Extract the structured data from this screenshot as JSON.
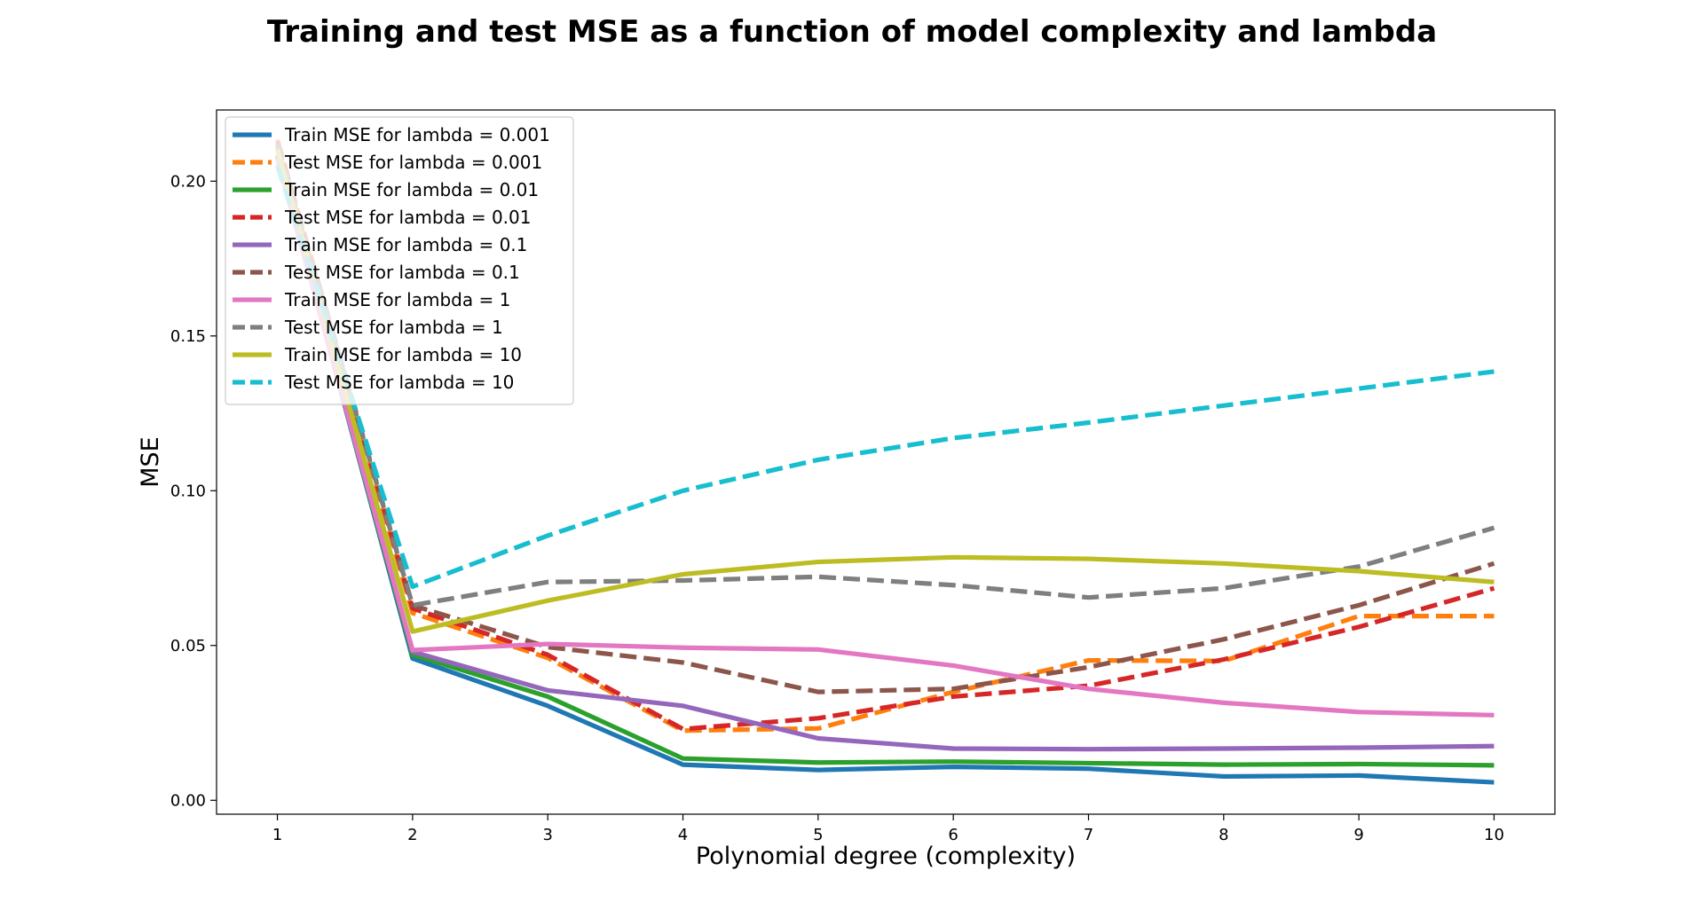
{
  "chart_data": {
    "type": "line",
    "title": "Training and test MSE as a function of model complexity and lambda",
    "xlabel": "Polynomial degree (complexity)",
    "ylabel": "MSE",
    "x": [
      1,
      2,
      3,
      4,
      5,
      6,
      7,
      8,
      9,
      10
    ],
    "x_ticks": [
      "1",
      "2",
      "3",
      "4",
      "5",
      "6",
      "7",
      "8",
      "9",
      "10"
    ],
    "y_ticks": [
      0.0,
      0.05,
      0.1,
      0.15,
      0.2
    ],
    "y_tick_labels": [
      "0.00",
      "0.05",
      "0.10",
      "0.15",
      "0.20"
    ],
    "xlim": [
      0.55,
      10.45
    ],
    "ylim": [
      -0.0045,
      0.223
    ],
    "grid": false,
    "legend_position": "top-left",
    "series": [
      {
        "name": "Train MSE for lambda = 0.001",
        "color": "#1f77b4",
        "style": "solid",
        "values": [
          0.2085,
          0.0458,
          0.0305,
          0.0115,
          0.0098,
          0.0108,
          0.0102,
          0.0077,
          0.008,
          0.0058
        ]
      },
      {
        "name": "Test MSE for lambda = 0.001",
        "color": "#ff7f0e",
        "style": "dashed",
        "values": [
          0.2135,
          0.0605,
          0.046,
          0.0225,
          0.0232,
          0.035,
          0.0452,
          0.045,
          0.0595,
          0.0595
        ]
      },
      {
        "name": "Train MSE for lambda = 0.01",
        "color": "#2ca02c",
        "style": "solid",
        "values": [
          0.208,
          0.047,
          0.0335,
          0.0135,
          0.0122,
          0.0125,
          0.012,
          0.0115,
          0.0117,
          0.0113
        ]
      },
      {
        "name": "Test MSE for lambda = 0.01",
        "color": "#d62728",
        "style": "dashed",
        "values": [
          0.213,
          0.062,
          0.047,
          0.023,
          0.0265,
          0.0335,
          0.037,
          0.0455,
          0.056,
          0.0685
        ]
      },
      {
        "name": "Train MSE for lambda = 0.1",
        "color": "#9467bd",
        "style": "solid",
        "values": [
          0.2075,
          0.048,
          0.0355,
          0.0305,
          0.02,
          0.0167,
          0.0165,
          0.0167,
          0.017,
          0.0175
        ]
      },
      {
        "name": "Test MSE for lambda = 0.1",
        "color": "#8c564b",
        "style": "dashed",
        "values": [
          0.212,
          0.063,
          0.0495,
          0.0445,
          0.035,
          0.036,
          0.043,
          0.052,
          0.063,
          0.0765
        ]
      },
      {
        "name": "Train MSE for lambda = 1",
        "color": "#e377c2",
        "style": "solid",
        "values": [
          0.207,
          0.0485,
          0.0505,
          0.0493,
          0.0487,
          0.0435,
          0.036,
          0.0315,
          0.0285,
          0.0275
        ]
      },
      {
        "name": "Test MSE for lambda = 1",
        "color": "#7f7f7f",
        "style": "dashed",
        "values": [
          0.211,
          0.063,
          0.0705,
          0.071,
          0.0722,
          0.0695,
          0.0655,
          0.0685,
          0.0755,
          0.088
        ]
      },
      {
        "name": "Train MSE for lambda = 10",
        "color": "#bcbd22",
        "style": "solid",
        "values": [
          0.21,
          0.0545,
          0.0645,
          0.073,
          0.077,
          0.0785,
          0.078,
          0.0765,
          0.074,
          0.0705
        ]
      },
      {
        "name": "Test MSE for lambda = 10",
        "color": "#17becf",
        "style": "dashed",
        "values": [
          0.205,
          0.069,
          0.0855,
          0.1,
          0.11,
          0.117,
          0.122,
          0.1275,
          0.133,
          0.1385
        ]
      }
    ]
  }
}
